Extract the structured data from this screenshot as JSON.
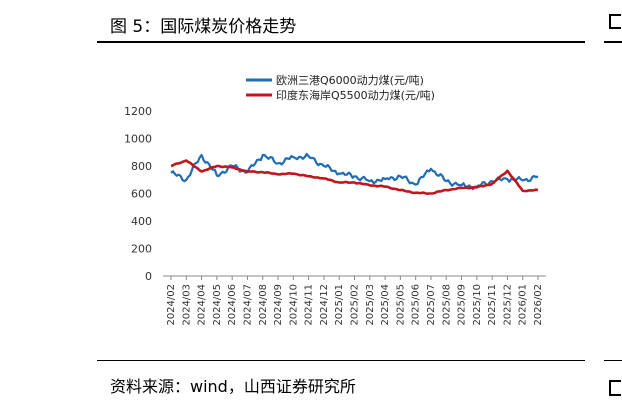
{
  "figure": {
    "title": "图 5：国际煤炭价格走势",
    "source": "资料来源：wind，山西证券研究所"
  },
  "chart_data": {
    "type": "line",
    "title": "国际煤炭价格走势",
    "xlabel": "",
    "ylabel": "",
    "ylim": [
      0,
      1200
    ],
    "yticks": [
      "0",
      "200",
      "400",
      "600",
      "800",
      "1000",
      "1200"
    ],
    "grid": false,
    "legend": "top-center",
    "x": [
      "2024/02",
      "2024/03",
      "2024/04",
      "2024/05",
      "2024/06",
      "2024/07",
      "2024/08",
      "2024/09",
      "2024/10",
      "2024/11",
      "2024/12",
      "2025/01",
      "2025/02",
      "2025/03",
      "2025/04",
      "2025/05",
      "2025/06",
      "2025/07",
      "2025/08",
      "2025/09",
      "2025/10",
      "2025/11",
      "2025/12",
      "2026/01",
      "2026/02"
    ],
    "series": [
      {
        "name": "欧洲三港Q6000动力煤(元/吨)",
        "color": "#1f6db5",
        "values": [
          750,
          700,
          880,
          730,
          800,
          755,
          880,
          820,
          865,
          870,
          800,
          745,
          725,
          690,
          705,
          725,
          665,
          780,
          690,
          660,
          650,
          690,
          705,
          695,
          725
        ]
      },
      {
        "name": "印度东海岸Q5500动力煤(元/吨)",
        "color": "#c0161d",
        "values": [
          800,
          840,
          760,
          800,
          790,
          760,
          755,
          740,
          745,
          725,
          710,
          680,
          680,
          660,
          650,
          625,
          605,
          600,
          625,
          640,
          645,
          670,
          765,
          620,
          625
        ]
      }
    ]
  }
}
